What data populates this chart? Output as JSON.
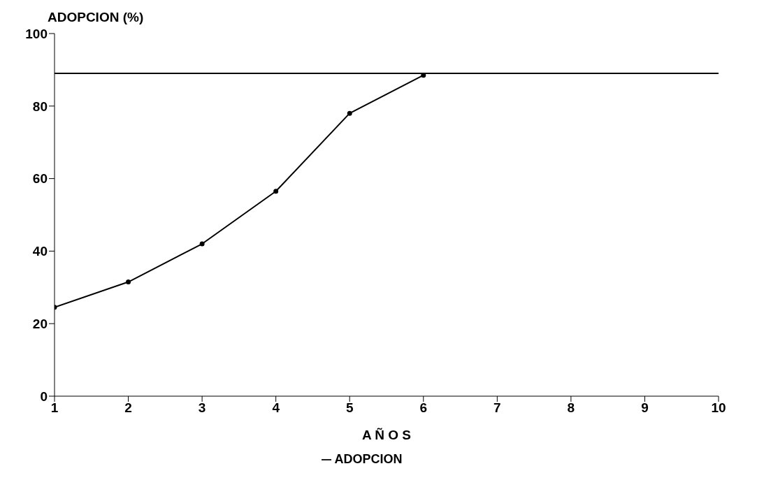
{
  "chart_data": {
    "type": "line",
    "ylabel": "ADOPCION (%)",
    "xlabel": "A Ñ O S",
    "x": [
      1,
      2,
      3,
      4,
      5,
      6
    ],
    "series": [
      {
        "name": "ADOPCION",
        "color": "#000000",
        "values": [
          24.5,
          31.5,
          42,
          56.5,
          78,
          88.5
        ]
      }
    ],
    "ref_lines": [
      {
        "axis": "y",
        "value": 89,
        "color": "#000000"
      }
    ],
    "xlim": [
      1,
      10
    ],
    "xticks": [
      1,
      2,
      3,
      4,
      5,
      6,
      7,
      8,
      9,
      10
    ],
    "ylim": [
      0,
      100
    ],
    "yticks": [
      0,
      20,
      40,
      60,
      80,
      100
    ],
    "grid": false,
    "legend": "bottom",
    "marker": "circle",
    "line_style": "solid"
  }
}
